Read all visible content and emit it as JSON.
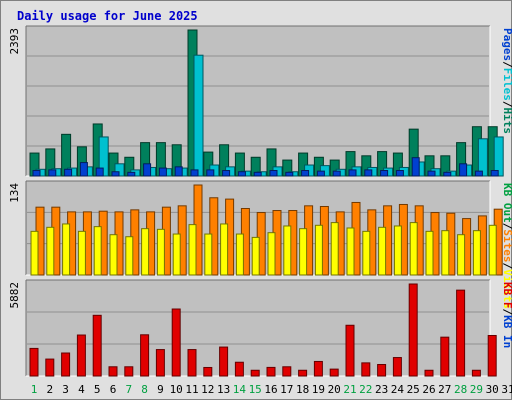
{
  "title": "Daily usage for June 2025",
  "colors": {
    "background": "#e0e0e0",
    "plot_bg": "#c0c0c0",
    "hits": "#00805c",
    "files": "#00c0d0",
    "pages": "#0040d0",
    "visits": "#ff8000",
    "sites": "#ffff00",
    "kbf": "#e00000",
    "title": "#0000cc",
    "weekend": "#00a040"
  },
  "days": [
    "1",
    "2",
    "3",
    "4",
    "5",
    "6",
    "7",
    "8",
    "9",
    "10",
    "11",
    "12",
    "13",
    "14",
    "15",
    "16",
    "17",
    "18",
    "19",
    "20",
    "21",
    "22",
    "23",
    "24",
    "25",
    "26",
    "27",
    "28",
    "29",
    "30",
    "31"
  ],
  "weekend_days": [
    "1",
    "7",
    "8",
    "14",
    "15",
    "21",
    "22",
    "28",
    "29"
  ],
  "chart_data": [
    {
      "type": "bar",
      "panel": "hits-files-pages",
      "categories": [
        "1",
        "2",
        "3",
        "4",
        "5",
        "6",
        "7",
        "8",
        "9",
        "10",
        "11",
        "12",
        "13",
        "14",
        "15",
        "16",
        "17",
        "18",
        "19",
        "20",
        "21",
        "22",
        "23",
        "24",
        "25",
        "26",
        "27",
        "28",
        "29",
        "30",
        "31"
      ],
      "ymax_label": "2393",
      "ylim": [
        0,
        2393
      ],
      "legend": [
        {
          "label": "Hits",
          "color": "#00805c"
        },
        {
          "label": "Files",
          "color": "#00c0d0"
        },
        {
          "label": "Pages",
          "color": "#0040d0"
        }
      ],
      "series": [
        {
          "name": "Hits",
          "values": [
            376,
            444,
            683,
            478,
            853,
            376,
            307,
            547,
            547,
            512,
            2393,
            392,
            512,
            376,
            307,
            444,
            261,
            376,
            307,
            261,
            400,
            331,
            400,
            376,
            768,
            331,
            331,
            547,
            808,
            808,
            0
          ]
        },
        {
          "name": "Files",
          "values": [
            110,
            120,
            130,
            150,
            640,
            200,
            100,
            140,
            120,
            130,
            1980,
            180,
            150,
            80,
            70,
            150,
            70,
            180,
            170,
            110,
            150,
            140,
            130,
            140,
            230,
            120,
            80,
            180,
            610,
            640,
            0
          ]
        },
        {
          "name": "Pages",
          "values": [
            90,
            100,
            110,
            220,
            130,
            70,
            60,
            200,
            130,
            150,
            100,
            100,
            90,
            70,
            60,
            90,
            60,
            90,
            80,
            80,
            100,
            100,
            90,
            90,
            300,
            80,
            60,
            200,
            80,
            90,
            0
          ]
        }
      ]
    },
    {
      "type": "bar",
      "panel": "visits-sites",
      "categories": [
        "1",
        "2",
        "3",
        "4",
        "5",
        "6",
        "7",
        "8",
        "9",
        "10",
        "11",
        "12",
        "13",
        "14",
        "15",
        "16",
        "17",
        "18",
        "19",
        "20",
        "21",
        "22",
        "23",
        "24",
        "25",
        "26",
        "27",
        "28",
        "29",
        "30",
        "31"
      ],
      "ymax_label": "134",
      "ylim": [
        0,
        134
      ],
      "legend": [
        {
          "label": "Visits",
          "color": "#ffff00"
        },
        {
          "label": "Sites",
          "color": "#ff8000"
        },
        {
          "label": "KB Out",
          "color": "#00a040"
        }
      ],
      "series": [
        {
          "name": "Visits",
          "values": [
            101,
            101,
            94,
            94,
            95,
            94,
            97,
            94,
            101,
            103,
            134,
            115,
            113,
            99,
            93,
            96,
            96,
            103,
            102,
            94,
            108,
            97,
            103,
            105,
            103,
            93,
            92,
            84,
            88,
            98,
            0
          ]
        },
        {
          "name": "Sites",
          "values": [
            65,
            71,
            76,
            65,
            72,
            60,
            57,
            69,
            68,
            61,
            75,
            61,
            76,
            61,
            56,
            63,
            73,
            69,
            74,
            78,
            70,
            65,
            71,
            73,
            78,
            65,
            66,
            60,
            66,
            74,
            0
          ]
        }
      ]
    },
    {
      "type": "bar",
      "panel": "kbf",
      "categories": [
        "1",
        "2",
        "3",
        "4",
        "5",
        "6",
        "7",
        "8",
        "9",
        "10",
        "11",
        "12",
        "13",
        "14",
        "15",
        "16",
        "17",
        "18",
        "19",
        "20",
        "21",
        "22",
        "23",
        "24",
        "25",
        "26",
        "27",
        "28",
        "29",
        "30",
        "31"
      ],
      "ymax_label": "5882",
      "ylim": [
        0,
        5882
      ],
      "legend": [
        {
          "label": "KB In",
          "color": "#0040d0"
        },
        {
          "label": "KB F",
          "color": "#e00000"
        }
      ],
      "series": [
        {
          "name": "KB F",
          "values": [
            1764,
            1082,
            1470,
            2620,
            3880,
            590,
            590,
            2635,
            1690,
            4283,
            1690,
            545,
            1850,
            880,
            367,
            550,
            590,
            367,
            930,
            440,
            3244,
            840,
            735,
            1180,
            5882,
            367,
            2483,
            5489,
            367,
            2590,
            0
          ]
        }
      ]
    }
  ]
}
